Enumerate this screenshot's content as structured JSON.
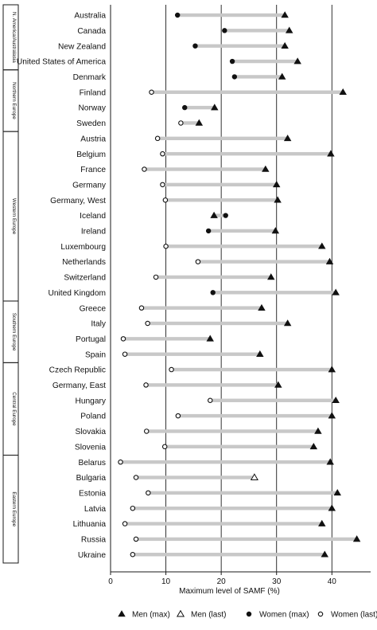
{
  "chart_data": {
    "type": "dumbbell",
    "xlabel": "Maximum level of SAMF (%)",
    "xlim": [
      0,
      47
    ],
    "xticks": [
      0,
      10,
      20,
      30,
      40
    ],
    "grid": "vertical",
    "legend_position": "bottom",
    "legend": [
      {
        "key": "men_max",
        "label": "Men (max)",
        "marker": "filled-triangle"
      },
      {
        "key": "men_last",
        "label": "Men (last)",
        "marker": "open-triangle"
      },
      {
        "key": "women_max",
        "label": "Women (max)",
        "marker": "filled-circle"
      },
      {
        "key": "women_last",
        "label": "Women (last)",
        "marker": "open-circle"
      }
    ],
    "groups": [
      {
        "label": "N. America/Australasia",
        "rows": [
          {
            "country": "Australia",
            "men": 31.5,
            "men_marker": "men_max",
            "women": 12.1,
            "women_marker": "women_max"
          },
          {
            "country": "Canada",
            "men": 32.3,
            "men_marker": "men_max",
            "women": 20.6,
            "women_marker": "women_max"
          },
          {
            "country": "New Zealand",
            "men": 31.5,
            "men_marker": "men_max",
            "women": 15.3,
            "women_marker": "women_max"
          },
          {
            "country": "United States of America",
            "men": 33.8,
            "men_marker": "men_max",
            "women": 22.0,
            "women_marker": "women_max"
          }
        ]
      },
      {
        "label": "Northern Europe",
        "rows": [
          {
            "country": "Denmark",
            "men": 31.0,
            "men_marker": "men_max",
            "women": 22.4,
            "women_marker": "women_max"
          },
          {
            "country": "Finland",
            "men": 42.0,
            "men_marker": "men_max",
            "women": 7.4,
            "women_marker": "women_last"
          },
          {
            "country": "Norway",
            "men": 18.8,
            "men_marker": "men_max",
            "women": 13.4,
            "women_marker": "women_max"
          },
          {
            "country": "Sweden",
            "men": 16.0,
            "men_marker": "men_max",
            "women": 12.7,
            "women_marker": "women_last"
          }
        ]
      },
      {
        "label": "Western Europe",
        "rows": [
          {
            "country": "Austria",
            "men": 32.0,
            "men_marker": "men_max",
            "women": 8.5,
            "women_marker": "women_last"
          },
          {
            "country": "Belgium",
            "men": 39.8,
            "men_marker": "men_max",
            "women": 9.4,
            "women_marker": "women_last"
          },
          {
            "country": "France",
            "men": 28.0,
            "men_marker": "men_max",
            "women": 6.1,
            "women_marker": "women_last"
          },
          {
            "country": "Germany",
            "men": 30.0,
            "men_marker": "men_max",
            "women": 9.4,
            "women_marker": "women_last"
          },
          {
            "country": "Germany, West",
            "men": 30.2,
            "men_marker": "men_max",
            "women": 9.9,
            "women_marker": "women_last"
          },
          {
            "country": "Iceland",
            "men": 18.7,
            "men_marker": "men_max",
            "women": 20.8,
            "women_marker": "women_max"
          },
          {
            "country": "Ireland",
            "men": 29.8,
            "men_marker": "men_max",
            "women": 17.7,
            "women_marker": "women_max"
          },
          {
            "country": "Luxembourg",
            "men": 38.2,
            "men_marker": "men_max",
            "women": 10.0,
            "women_marker": "women_last"
          },
          {
            "country": "Netherlands",
            "men": 39.6,
            "men_marker": "men_max",
            "women": 15.8,
            "women_marker": "women_last"
          },
          {
            "country": "Switzerland",
            "men": 29.0,
            "men_marker": "men_max",
            "women": 8.2,
            "women_marker": "women_last"
          },
          {
            "country": "United Kingdom",
            "men": 40.7,
            "men_marker": "men_max",
            "women": 18.5,
            "women_marker": "women_max"
          }
        ]
      },
      {
        "label": "Southern Europe",
        "rows": [
          {
            "country": "Greece",
            "men": 27.3,
            "men_marker": "men_max",
            "women": 5.6,
            "women_marker": "women_last"
          },
          {
            "country": "Italy",
            "men": 32.0,
            "men_marker": "men_max",
            "women": 6.7,
            "women_marker": "women_last"
          },
          {
            "country": "Portugal",
            "men": 18.0,
            "men_marker": "men_max",
            "women": 2.3,
            "women_marker": "women_last"
          },
          {
            "country": "Spain",
            "men": 27.0,
            "men_marker": "men_max",
            "women": 2.6,
            "women_marker": "women_last"
          }
        ]
      },
      {
        "label": "Central Europe",
        "rows": [
          {
            "country": "Czech Republic",
            "men": 40.0,
            "men_marker": "men_max",
            "women": 11.0,
            "women_marker": "women_last"
          },
          {
            "country": "Germany, East",
            "men": 30.3,
            "men_marker": "men_max",
            "women": 6.4,
            "women_marker": "women_last"
          },
          {
            "country": "Hungary",
            "men": 40.7,
            "men_marker": "men_max",
            "women": 18.0,
            "women_marker": "women_last"
          },
          {
            "country": "Poland",
            "men": 40.0,
            "men_marker": "men_max",
            "women": 12.2,
            "women_marker": "women_last"
          },
          {
            "country": "Slovakia",
            "men": 37.5,
            "men_marker": "men_max",
            "women": 6.5,
            "women_marker": "women_last"
          },
          {
            "country": "Slovenia",
            "men": 36.7,
            "men_marker": "men_max",
            "women": 9.8,
            "women_marker": "women_last"
          }
        ]
      },
      {
        "label": "Eastern Europe",
        "rows": [
          {
            "country": "Belarus",
            "men": 39.7,
            "men_marker": "men_max",
            "women": 1.8,
            "women_marker": "women_last"
          },
          {
            "country": "Bulgaria",
            "men": 26.0,
            "men_marker": "men_last",
            "women": 4.6,
            "women_marker": "women_last"
          },
          {
            "country": "Estonia",
            "men": 41.0,
            "men_marker": "men_max",
            "women": 6.8,
            "women_marker": "women_last"
          },
          {
            "country": "Latvia",
            "men": 40.0,
            "men_marker": "men_max",
            "women": 4.0,
            "women_marker": "women_last"
          },
          {
            "country": "Lithuania",
            "men": 38.2,
            "men_marker": "men_max",
            "women": 2.6,
            "women_marker": "women_last"
          },
          {
            "country": "Russia",
            "men": 44.5,
            "men_marker": "men_max",
            "women": 4.6,
            "women_marker": "women_last"
          },
          {
            "country": "Ukraine",
            "men": 38.7,
            "men_marker": "men_max",
            "women": 4.0,
            "women_marker": "women_last"
          }
        ]
      }
    ]
  },
  "colors": {
    "bar": "#c8c8c8",
    "grid": "#1a1a1a",
    "marker": "#111111",
    "background": "#ffffff"
  }
}
